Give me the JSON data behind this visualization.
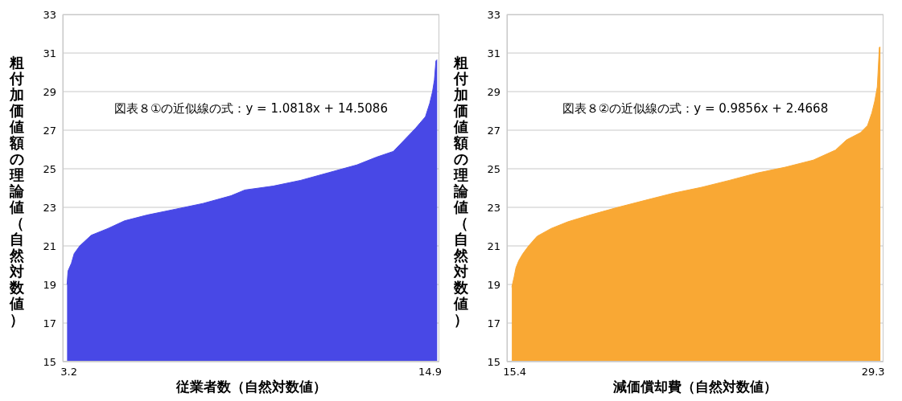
{
  "chart_data": [
    {
      "type": "area",
      "xlabel": "従業者数（自然対数値）",
      "ylabel": "粗付加価値額の理論値（自然対数値）",
      "annotations": [
        "図表８①の近似線の式：y = 1.0818x + 14.5086"
      ],
      "xlim": [
        3.0,
        15.2
      ],
      "xticks": [
        3.2,
        14.9
      ],
      "ylim": [
        15,
        33
      ],
      "yticks": [
        15,
        17,
        19,
        21,
        23,
        25,
        27,
        29,
        31,
        33
      ],
      "grid": "y",
      "series": [
        {
          "color": "#4848e6",
          "x": [
            3.14,
            3.17,
            3.28,
            3.37,
            3.55,
            3.92,
            4.46,
            5.0,
            5.73,
            6.64,
            7.54,
            8.45,
            8.9,
            9.81,
            10.71,
            11.62,
            12.53,
            13.16,
            13.71,
            14.07,
            14.43,
            14.75,
            14.89,
            14.98,
            15.04,
            15.09,
            15.13
          ],
          "values": [
            19.0,
            19.7,
            20.1,
            20.6,
            21.0,
            21.55,
            21.9,
            22.3,
            22.6,
            22.9,
            23.2,
            23.6,
            23.9,
            24.1,
            24.4,
            24.8,
            25.2,
            25.6,
            25.9,
            26.5,
            27.1,
            27.7,
            28.4,
            29.0,
            29.6,
            30.6,
            30.65
          ]
        }
      ]
    },
    {
      "type": "area",
      "xlabel": "減価償却費（自然対数値）",
      "ylabel": "粗付加価値額の理論値（自然対数値）",
      "annotations": [
        "図表８②の近似線の式：y = 0.9856x + 2.4668"
      ],
      "xlim": [
        15.1,
        29.7
      ],
      "xticks": [
        15.4,
        29.3
      ],
      "ylim": [
        15,
        33
      ],
      "yticks": [
        15,
        17,
        19,
        21,
        23,
        25,
        27,
        29,
        31,
        33
      ],
      "grid": "y",
      "series": [
        {
          "color": "#f9a834",
          "x": [
            15.29,
            15.38,
            15.45,
            15.56,
            15.72,
            15.94,
            16.27,
            16.81,
            17.46,
            18.32,
            19.4,
            20.48,
            21.57,
            22.65,
            23.73,
            24.81,
            25.89,
            26.98,
            27.84,
            28.27,
            28.81,
            29.08,
            29.25,
            29.36,
            29.46,
            29.54,
            29.58
          ],
          "values": [
            18.86,
            19.4,
            19.87,
            20.24,
            20.6,
            21.0,
            21.5,
            21.9,
            22.25,
            22.6,
            23.0,
            23.37,
            23.74,
            24.04,
            24.4,
            24.78,
            25.08,
            25.45,
            25.97,
            26.5,
            26.87,
            27.24,
            27.9,
            28.5,
            29.25,
            31.3,
            31.3
          ]
        }
      ]
    }
  ]
}
